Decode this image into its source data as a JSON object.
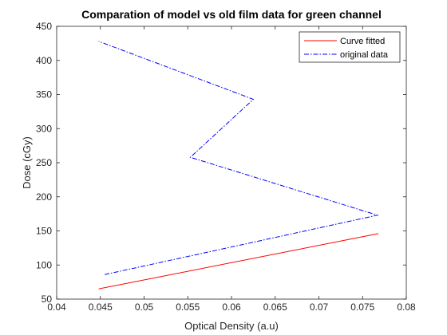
{
  "chart_data": {
    "type": "line",
    "title": "Comparation of model vs old film data for green channel",
    "xlabel": "Optical Density (a.u)",
    "ylabel": "Dose (cGy)",
    "xlim": [
      0.04,
      0.08
    ],
    "ylim": [
      50,
      450
    ],
    "xticks": [
      "0.04",
      "0.045",
      "0.05",
      "0.055",
      "0.06",
      "0.065",
      "0.07",
      "0.075",
      "0.08"
    ],
    "yticks": [
      "50",
      "100",
      "150",
      "200",
      "250",
      "300",
      "350",
      "400",
      "450"
    ],
    "grid": false,
    "legend_position": "top-right",
    "series": [
      {
        "name": "Curve fitted",
        "color": "#ff0000",
        "style": "solid",
        "x": [
          0.0448,
          0.0768
        ],
        "y": [
          65,
          146
        ]
      },
      {
        "name": "original data",
        "color": "#0000ff",
        "style": "dashdot",
        "x": [
          0.0455,
          0.0767,
          0.0553,
          0.0625,
          0.0448
        ],
        "y": [
          86,
          173,
          258,
          343,
          428
        ]
      }
    ]
  }
}
